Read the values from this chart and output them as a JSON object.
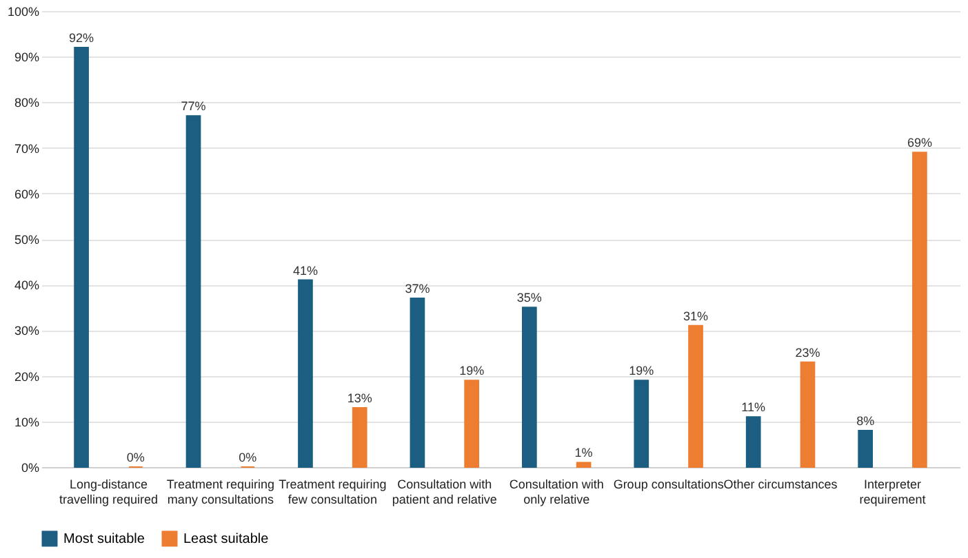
{
  "chart_data": {
    "type": "bar",
    "categories": [
      "Long-distance travelling required",
      "Treatment requiring many consultations",
      "Treatment requiring few consultation",
      "Consultation with patient and relative",
      "Consultation with only relative",
      "Group consultations",
      "Other circumstances",
      "Interpreter requirement"
    ],
    "series": [
      {
        "name": "Most suitable",
        "color": "#1b5e82",
        "values": [
          92,
          77,
          41,
          37,
          35,
          19,
          11,
          8
        ],
        "value_labels": [
          "92%",
          "77%",
          "41%",
          "37%",
          "35%",
          "19%",
          "11%",
          "8%"
        ]
      },
      {
        "name": "Least suitable",
        "color": "#ed7d31",
        "values": [
          0,
          0,
          13,
          19,
          1,
          31,
          23,
          69
        ],
        "value_labels": [
          "0%",
          "0%",
          "13%",
          "19%",
          "1%",
          "31%",
          "23%",
          "69%"
        ]
      }
    ],
    "ylim": [
      0,
      100
    ],
    "yticks": [
      {
        "value": 0,
        "label": "0%"
      },
      {
        "value": 10,
        "label": "10%"
      },
      {
        "value": 20,
        "label": "20%"
      },
      {
        "value": 30,
        "label": "30%"
      },
      {
        "value": 40,
        "label": "40%"
      },
      {
        "value": 50,
        "label": "50%"
      },
      {
        "value": 60,
        "label": "60%"
      },
      {
        "value": 70,
        "label": "70%"
      },
      {
        "value": 80,
        "label": "80%"
      },
      {
        "value": 90,
        "label": "90%"
      },
      {
        "value": 100,
        "label": "100%"
      }
    ],
    "grid": "y",
    "legend": "bottom"
  }
}
